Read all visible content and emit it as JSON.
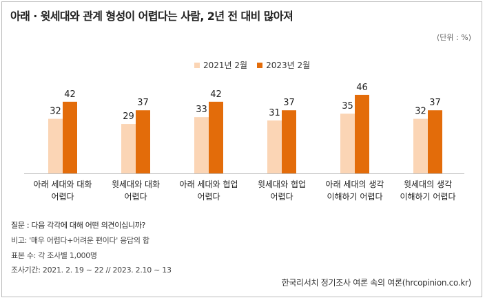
{
  "header": {
    "title": "아래 · 윗세대와 관계 형성이 어렵다는 사람, 2년 전 대비 많아져",
    "unit": "(단위 : %)"
  },
  "chart_data": {
    "type": "bar",
    "title": "아래 · 윗세대와 관계 형성이 어렵다는 사람, 2년 전 대비 많아져",
    "xlabel": "",
    "ylabel": "",
    "ylim": [
      0,
      50
    ],
    "legend_position": "top-center",
    "categories": [
      [
        "아래 세대와 대화",
        "어렵다"
      ],
      [
        "윗세대와 대화",
        "어렵다"
      ],
      [
        "아래 세대와 협업",
        "어렵다"
      ],
      [
        "윗세대와 협업",
        "어렵다"
      ],
      [
        "아래 세대의 생각",
        "이해하기 어렵다"
      ],
      [
        "윗세대의 생각",
        "이해하기 어렵다"
      ]
    ],
    "series": [
      {
        "name": "2021년 2월",
        "color": "#fbd5b5",
        "values": [
          32,
          29,
          33,
          31,
          35,
          32
        ]
      },
      {
        "name": "2023년 2월",
        "color": "#e36c0a",
        "values": [
          42,
          37,
          42,
          37,
          46,
          37
        ]
      }
    ]
  },
  "footnotes": {
    "question": "질문 : 다음 각각에 대해 어떤 의견이십니까?",
    "note": "비고: '매우 어렵다+어려운 편이다' 응답의 합",
    "sample": "표본 수: 각 조사별 1,000명",
    "period": "조사기간:  2021. 2. 19 ~ 22  // 2023.  2.10 ~ 13"
  },
  "source": "한국리서치 정기조사 여론 속의 여론(hrcopinion.co.kr)"
}
